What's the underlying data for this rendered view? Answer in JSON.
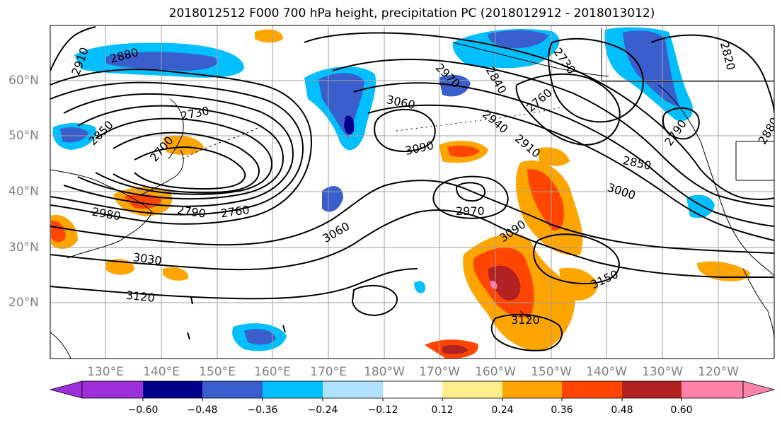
{
  "title": "2018012512 F000 700 hPa height, precipitation PC (2018012912 - 2018013012)",
  "map": {
    "lat_labels": [
      "60°N",
      "50°N",
      "40°N",
      "30°N",
      "20°N"
    ],
    "lon_labels": [
      "130°E",
      "140°E",
      "150°E",
      "160°E",
      "170°E",
      "180°W",
      "170°W",
      "160°W",
      "150°W",
      "140°W",
      "130°W",
      "120°W"
    ],
    "contour_labels": [
      "2910",
      "2880",
      "2850",
      "2730",
      "2700",
      "2980",
      "2790",
      "2760",
      "3030",
      "3120",
      "3060",
      "3060",
      "3090",
      "2970",
      "2940",
      "2910",
      "2840",
      "2760",
      "2730",
      "2820",
      "2850",
      "3000",
      "2970",
      "3090",
      "3150",
      "3120",
      "2790",
      "2880"
    ]
  },
  "colorbar": {
    "ticks": [
      "−0.60",
      "−0.48",
      "−0.36",
      "−0.24",
      "−0.12",
      "0.12",
      "0.24",
      "0.36",
      "0.48",
      "0.60"
    ],
    "colors": [
      "#9b30d9",
      "#00008b",
      "#3a5fcd",
      "#00bfff",
      "#b0e2ff",
      "#ffffff",
      "#ffec8b",
      "#ffa500",
      "#ff4500",
      "#b22222",
      "#ff82ab"
    ]
  },
  "colors": {
    "grid": "#a0a0a0",
    "contour": "#000000",
    "coast": "#000000"
  }
}
